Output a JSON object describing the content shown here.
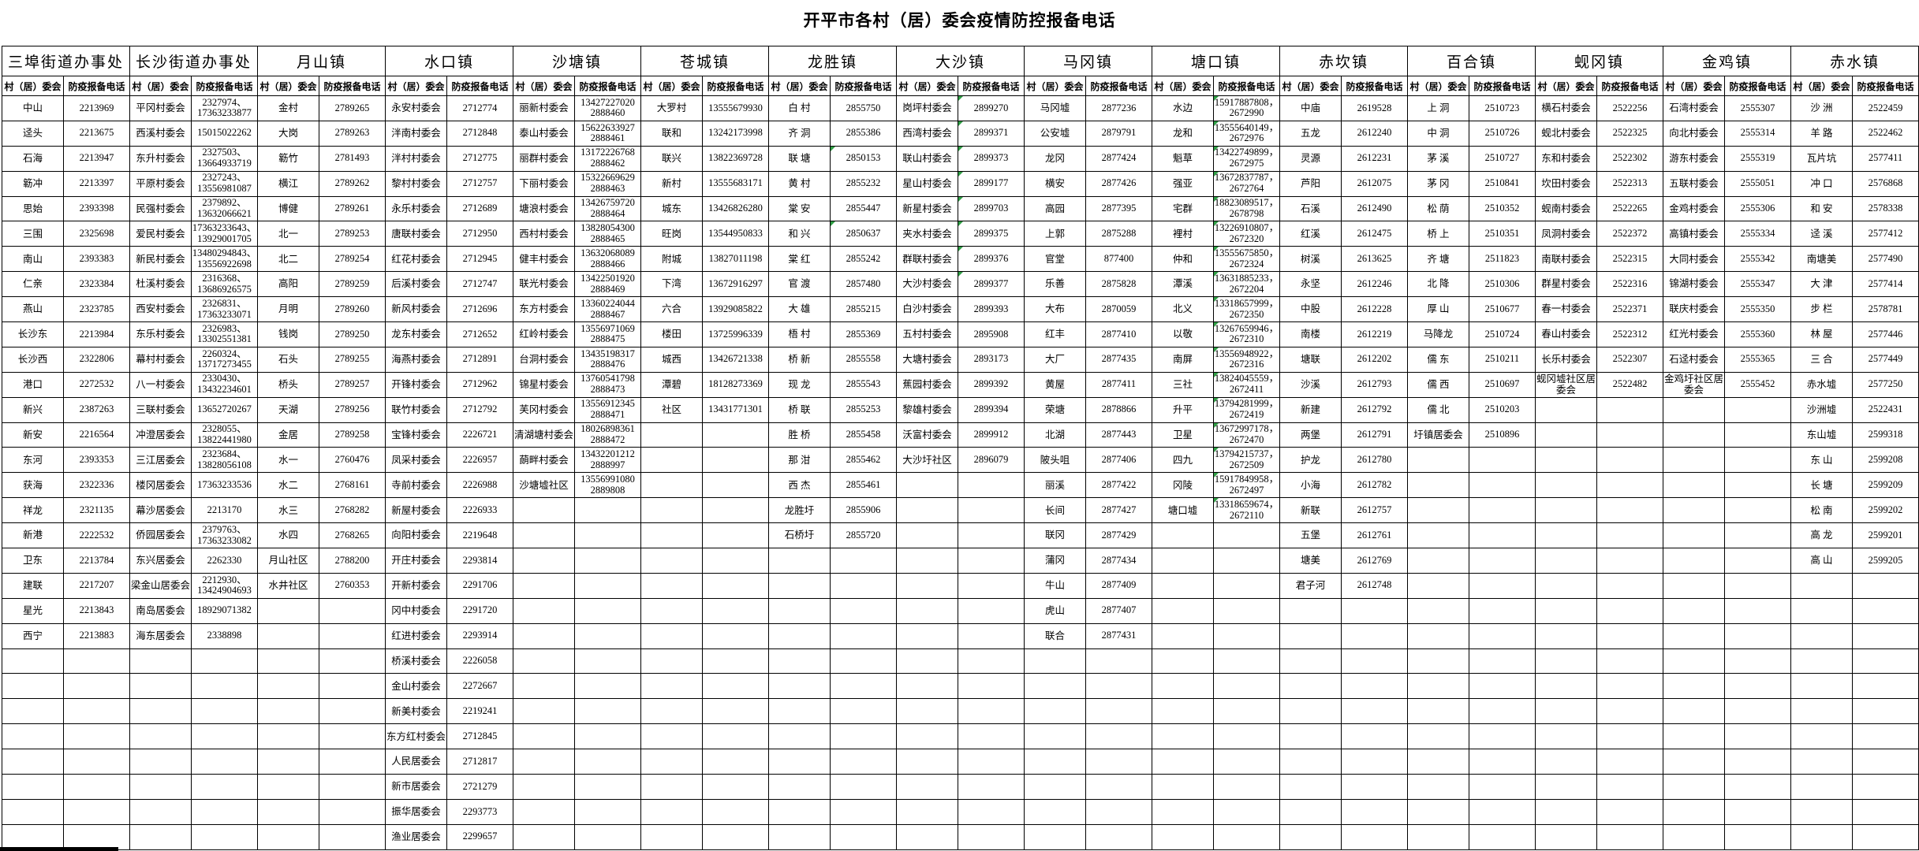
{
  "title": "开平市各村（居）委会疫情防控报备电话",
  "column_headers": {
    "village": "村（居）委会",
    "phone": "防疫报备电话"
  },
  "colors": {
    "grid": "#000000",
    "excel_marker_green": "#2f9e44",
    "background": "#ffffff"
  },
  "towns": [
    {
      "name": "三埠街道办事处",
      "rows": [
        [
          "中山",
          "2213969"
        ],
        [
          "迳头",
          "2213675"
        ],
        [
          "石海",
          "2213947"
        ],
        [
          "簕冲",
          "2213397"
        ],
        [
          "思始",
          "2393398"
        ],
        [
          "三围",
          "2325698"
        ],
        [
          "南山",
          "2393383"
        ],
        [
          "仁亲",
          "2323384"
        ],
        [
          "燕山",
          "2323785"
        ],
        [
          "长沙东",
          "2213984"
        ],
        [
          "长沙西",
          "2322806"
        ],
        [
          "港口",
          "2272532"
        ],
        [
          "新兴",
          "2387263"
        ],
        [
          "新安",
          "2216564"
        ],
        [
          "东河",
          "2393353"
        ],
        [
          "获海",
          "2322336"
        ],
        [
          "祥龙",
          "2321135"
        ],
        [
          "新港",
          "2222532"
        ],
        [
          "卫东",
          "2213784"
        ],
        [
          "建联",
          "2217207"
        ],
        [
          "星光",
          "2213843"
        ],
        [
          "西宁",
          "2213883"
        ]
      ]
    },
    {
      "name": "长沙街道办事处",
      "rows": [
        [
          "平冈村委会",
          "2327974、\n17363233877"
        ],
        [
          "西溪村委会",
          "15015022262"
        ],
        [
          "东升村委会",
          "2327503、\n13664933719"
        ],
        [
          "平原村委会",
          "2327243、\n13556981087"
        ],
        [
          "民强村委会",
          "2379892、\n13632066621"
        ],
        [
          "爱民村委会",
          "17363233643、\n13929001705"
        ],
        [
          "新民村委会",
          "13480294843、\n13556922698"
        ],
        [
          "杜溪村委会",
          "2316368、\n13686926575"
        ],
        [
          "西安村委会",
          "2326831、\n17363233071"
        ],
        [
          "东乐村委会",
          "2326983、\n13302551381"
        ],
        [
          "幕村村委会",
          "2260324、\n13717273455"
        ],
        [
          "八一村委会",
          "2330430、\n13432234601"
        ],
        [
          "三联村委会",
          "13652720267"
        ],
        [
          "冲澄居委会",
          "2328055、\n13822441980"
        ],
        [
          "三江居委会",
          "2323684、\n13828056108"
        ],
        [
          "楼冈居委会",
          "17363233536"
        ],
        [
          "幕沙居委会",
          "2213170"
        ],
        [
          "侨园居委会",
          "2379763、\n17363233082"
        ],
        [
          "东兴居委会",
          "2262330"
        ],
        [
          "梁金山居委会",
          "2212930、\n13424904693"
        ],
        [
          "南岛居委会",
          "18929071382"
        ],
        [
          "海东居委会",
          "2338898"
        ]
      ]
    },
    {
      "name": "月山镇",
      "rows": [
        [
          "金村",
          "2789265"
        ],
        [
          "大岗",
          "2789263"
        ],
        [
          "簕竹",
          "2781493"
        ],
        [
          "横江",
          "2789262"
        ],
        [
          "博健",
          "2789261"
        ],
        [
          "北一",
          "2789253"
        ],
        [
          "北二",
          "2789254"
        ],
        [
          "高阳",
          "2789259"
        ],
        [
          "月明",
          "2789260"
        ],
        [
          "钱岗",
          "2789250"
        ],
        [
          "石头",
          "2789255"
        ],
        [
          "桥头",
          "2789257"
        ],
        [
          "天湖",
          "2789256"
        ],
        [
          "金居",
          "2789258"
        ],
        [
          "水一",
          "2760476"
        ],
        [
          "水二",
          "2768161"
        ],
        [
          "水三",
          "2768282"
        ],
        [
          "水四",
          "2768265"
        ],
        [
          "月山社区",
          "2788200"
        ],
        [
          "水井社区",
          "2760353"
        ]
      ]
    },
    {
      "name": "水口镇",
      "rows": [
        [
          "永安村委会",
          "2712774"
        ],
        [
          "泮南村委会",
          "2712848"
        ],
        [
          "泮村村委会",
          "2712775"
        ],
        [
          "黎村村委会",
          "2712757"
        ],
        [
          "永乐村委会",
          "2712689"
        ],
        [
          "唐联村委会",
          "2712950"
        ],
        [
          "红花村委会",
          "2712945"
        ],
        [
          "后溪村委会",
          "2712747"
        ],
        [
          "新风村委会",
          "2712696"
        ],
        [
          "龙东村委会",
          "2712652"
        ],
        [
          "海燕村委会",
          "2712891"
        ],
        [
          "开锋村委会",
          "2712962"
        ],
        [
          "联竹村委会",
          "2712792"
        ],
        [
          "宝锋村委会",
          "2226721"
        ],
        [
          "凤采村委会",
          "2226957"
        ],
        [
          "寺前村委会",
          "2226988"
        ],
        [
          "新屋村委会",
          "2226933"
        ],
        [
          "向阳村委会",
          "2219648"
        ],
        [
          "开庄村委会",
          "2293814"
        ],
        [
          "开新村委会",
          "2291706"
        ],
        [
          "冈中村委会",
          "2291720"
        ],
        [
          "红进村委会",
          "2293914"
        ],
        [
          "桥溪村委会",
          "2226058"
        ],
        [
          "金山村委会",
          "2272667"
        ],
        [
          "新美村委会",
          "2219241"
        ],
        [
          "东方红村委会",
          "2712845"
        ],
        [
          "人民居委会",
          "2712817"
        ],
        [
          "新市居委会",
          "2721279"
        ],
        [
          "振华居委会",
          "2293773"
        ],
        [
          "渔业居委会",
          "2299657"
        ]
      ]
    },
    {
      "name": "沙塘镇",
      "rows": [
        [
          "丽新村委会",
          "13427227020\n2888460"
        ],
        [
          "泰山村委会",
          "15622633927\n2888461"
        ],
        [
          "丽群村委会",
          "13172226768\n2888462"
        ],
        [
          "下丽村委会",
          "15322669629\n2888463"
        ],
        [
          "塘浪村委会",
          "13426759720\n2888464"
        ],
        [
          "西村村委会",
          "13828054300\n2888465"
        ],
        [
          "健丰村委会",
          "13632068089\n2888466"
        ],
        [
          "联光村委会",
          "13422501920\n2888469"
        ],
        [
          "东方村委会",
          "13360224044\n2888467"
        ],
        [
          "红岭村委会",
          "13556971069\n2888475"
        ],
        [
          "台洞村委会",
          "13435198317\n2888476"
        ],
        [
          "锦星村委会",
          "13760541798\n2888473"
        ],
        [
          "芙冈村委会",
          "13556912345\n2888471"
        ],
        [
          "清湖塘村委会",
          "18026898361\n2888472"
        ],
        [
          "蓢畔村委会",
          "13432201212\n2888997"
        ],
        [
          "沙塘墟社区",
          "13556991080\n2889808"
        ]
      ]
    },
    {
      "name": "苍城镇",
      "rows": [
        [
          "大罗村",
          "13555679930"
        ],
        [
          "联和",
          "13242173998"
        ],
        [
          "联兴",
          "13822369728"
        ],
        [
          "新村",
          "13555683171"
        ],
        [
          "城东",
          "13426826280"
        ],
        [
          "旺岗",
          "13544950833"
        ],
        [
          "附城",
          "13827011198"
        ],
        [
          "下湾",
          "13672916297"
        ],
        [
          "六合",
          "13929085822"
        ],
        [
          "楼田",
          "13725996339"
        ],
        [
          "城西",
          "13426721338"
        ],
        [
          "潭碧",
          "18128273369"
        ],
        [
          "社区",
          "13431771301"
        ]
      ]
    },
    {
      "name": "龙胜镇",
      "marker_rows": [
        2,
        5
      ],
      "rows": [
        [
          "白 村",
          "2855750"
        ],
        [
          "齐 洞",
          "2855386"
        ],
        [
          "联 塘",
          "2850153"
        ],
        [
          "黄 村",
          "2855232"
        ],
        [
          "棠 安",
          "2855447"
        ],
        [
          "和 兴",
          "2850637"
        ],
        [
          "棠 红",
          "2855242"
        ],
        [
          "官 渡",
          "2857480"
        ],
        [
          "大 雄",
          "2855215"
        ],
        [
          "梧 村",
          "2855369"
        ],
        [
          "桥 新",
          "2855558"
        ],
        [
          "现 龙",
          "2855543"
        ],
        [
          "桥 联",
          "2855253"
        ],
        [
          "胜 桥",
          "2855458"
        ],
        [
          "那 泔",
          "2855462"
        ],
        [
          "西 杰",
          "2855461"
        ],
        [
          "龙胜圩",
          "2855906"
        ],
        [
          "石桥圩",
          "2855720"
        ]
      ]
    },
    {
      "name": "大沙镇",
      "marker_rows": [
        0,
        1,
        2,
        3,
        4,
        5,
        6,
        7
      ],
      "rows": [
        [
          "岗坪村委会",
          "2899270"
        ],
        [
          "西湾村委会",
          "2899371"
        ],
        [
          "联山村委会",
          "2899373"
        ],
        [
          "星山村委会",
          "2899177"
        ],
        [
          "新星村委会",
          "2899703"
        ],
        [
          "夹水村委会",
          "2899375"
        ],
        [
          "群联村委会",
          "2899376"
        ],
        [
          "大沙村委会",
          "2899377"
        ],
        [
          "白沙村委会",
          "2899393"
        ],
        [
          "五村村委会",
          "2895908"
        ],
        [
          "大塘村委会",
          "2893173"
        ],
        [
          "蕉园村委会",
          "2899392"
        ],
        [
          "黎雄村委会",
          "2899394"
        ],
        [
          "沃富村委会",
          "2899912"
        ],
        [
          "大沙圩社区",
          "2896079"
        ]
      ]
    },
    {
      "name": "马冈镇",
      "rows": [
        [
          "马冈墟",
          "2877236"
        ],
        [
          "公安墟",
          "2879791"
        ],
        [
          "龙冈",
          "2877424"
        ],
        [
          "横安",
          "2877426"
        ],
        [
          "高园",
          "2877395"
        ],
        [
          "上郭",
          "2875288"
        ],
        [
          "官堂",
          "877400"
        ],
        [
          "乐善",
          "2875828"
        ],
        [
          "大布",
          "2870059"
        ],
        [
          "红丰",
          "2877410"
        ],
        [
          "大厂",
          "2877435"
        ],
        [
          "黄屋",
          "2877411"
        ],
        [
          "荣塘",
          "2878866"
        ],
        [
          "北湖",
          "2877443"
        ],
        [
          "陂头咀",
          "2877406"
        ],
        [
          "丽溪",
          "2877422"
        ],
        [
          "长间",
          "2877427"
        ],
        [
          "联冈",
          "2877429"
        ],
        [
          "蒲冈",
          "2877434"
        ],
        [
          "牛山",
          "2877409"
        ],
        [
          "虎山",
          "2877407"
        ],
        [
          "联合",
          "2877431"
        ]
      ]
    },
    {
      "name": "塘口镇",
      "marker_rows": "all",
      "rows": [
        [
          "水边",
          "15917887808，\n2672990"
        ],
        [
          "龙和",
          "13555640149，\n2672976"
        ],
        [
          "魁草",
          "13422749899，\n2672975"
        ],
        [
          "强亚",
          "13672837787，\n2672764"
        ],
        [
          "宅群",
          "18823089517，\n2678798"
        ],
        [
          "裡村",
          "13226910807，\n2672320"
        ],
        [
          "仲和",
          "13555675850，\n2672324"
        ],
        [
          "潭溪",
          "13631885233，\n2672204"
        ],
        [
          "北义",
          "13318657999，\n2672350"
        ],
        [
          "以敬",
          "13267659946，\n2672310"
        ],
        [
          "南屏",
          "13556948922，\n2672316"
        ],
        [
          "三社",
          "13824045559，\n2672411"
        ],
        [
          "升平",
          "13794281999，\n2672419"
        ],
        [
          "卫星",
          "13672997178，\n2672470"
        ],
        [
          "四九",
          "13794215737，\n2672509"
        ],
        [
          "冈陵",
          "15917849958，\n2672497"
        ],
        [
          "塘口墟",
          "13318659674，\n2672110"
        ]
      ]
    },
    {
      "name": "赤坎镇",
      "rows": [
        [
          "中庙",
          "2619528"
        ],
        [
          "五龙",
          "2612240"
        ],
        [
          "灵源",
          "2612231"
        ],
        [
          "芦阳",
          "2612075"
        ],
        [
          "石溪",
          "2612490"
        ],
        [
          "红溪",
          "2612475"
        ],
        [
          "树溪",
          "2613625"
        ],
        [
          "永坚",
          "2612246"
        ],
        [
          "中股",
          "2612228"
        ],
        [
          "南楼",
          "2612219"
        ],
        [
          "塘联",
          "2612202"
        ],
        [
          "沙溪",
          "2612793"
        ],
        [
          "新建",
          "2612792"
        ],
        [
          "两堡",
          "2612791"
        ],
        [
          "护龙",
          "2612780"
        ],
        [
          "小海",
          "2612782"
        ],
        [
          "新联",
          "2612757"
        ],
        [
          "五堡",
          "2612761"
        ],
        [
          "塘美",
          "2612769"
        ],
        [
          "君子河",
          "2612748"
        ]
      ]
    },
    {
      "name": "百合镇",
      "rows": [
        [
          "上 洞",
          "2510723"
        ],
        [
          "中 洞",
          "2510726"
        ],
        [
          "茅 溪",
          "2510727"
        ],
        [
          "茅 冈",
          "2510841"
        ],
        [
          "松 荫",
          "2510352"
        ],
        [
          "桥 上",
          "2510351"
        ],
        [
          "齐 塘",
          "2511823"
        ],
        [
          "北 降",
          "2510306"
        ],
        [
          "厚 山",
          "2510677"
        ],
        [
          "马降龙",
          "2510724"
        ],
        [
          "儒 东",
          "2510211"
        ],
        [
          "儒 西",
          "2510697"
        ],
        [
          "儒 北",
          "2510203"
        ],
        [
          "圩镇居委会",
          "2510896"
        ]
      ]
    },
    {
      "name": "蚬冈镇",
      "rows": [
        [
          "横石村委会",
          "2522256"
        ],
        [
          "蚬北村委会",
          "2522325"
        ],
        [
          "东和村委会",
          "2522302"
        ],
        [
          "坎田村委会",
          "2522313"
        ],
        [
          "蚬南村委会",
          "2522265"
        ],
        [
          "凤洞村委会",
          "2522372"
        ],
        [
          "南联村委会",
          "2522315"
        ],
        [
          "群星村委会",
          "2522316"
        ],
        [
          "春一村委会",
          "2522371"
        ],
        [
          "春山村委会",
          "2522312"
        ],
        [
          "长乐村委会",
          "2522307"
        ],
        [
          "蚬冈墟社区居委会",
          "2522482"
        ]
      ]
    },
    {
      "name": "金鸡镇",
      "rows": [
        [
          "石湾村委会",
          "2555307"
        ],
        [
          "向北村委会",
          "2555314"
        ],
        [
          "游东村委会",
          "2555319"
        ],
        [
          "五联村委会",
          "2555051"
        ],
        [
          "金鸡村委会",
          "2555306"
        ],
        [
          "高镇村委会",
          "2555334"
        ],
        [
          "大同村委会",
          "2555342"
        ],
        [
          "锦湖村委会",
          "2555347"
        ],
        [
          "联庆村委会",
          "2555350"
        ],
        [
          "红光村委会",
          "2555360"
        ],
        [
          "石迳村委会",
          "2555365"
        ],
        [
          "金鸡圩社区居委会",
          "2555452"
        ]
      ]
    },
    {
      "name": "赤水镇",
      "rows": [
        [
          "沙 洲",
          "2522459"
        ],
        [
          "羊 路",
          "2522462"
        ],
        [
          "瓦片坑",
          "2577411"
        ],
        [
          "冲 口",
          "2576868"
        ],
        [
          "和 安",
          "2578338"
        ],
        [
          "迳 溪",
          "2577412"
        ],
        [
          "南塘美",
          "2577490"
        ],
        [
          "大 津",
          "2577414"
        ],
        [
          "步 栏",
          "2578781"
        ],
        [
          "林 屋",
          "2577446"
        ],
        [
          "三 合",
          "2577449"
        ],
        [
          "赤水墟",
          "2577250"
        ],
        [
          "沙洲墟",
          "2522431"
        ],
        [
          "东山墟",
          "2599318"
        ],
        [
          "东 山",
          "2599208"
        ],
        [
          "长 塘",
          "2599209"
        ],
        [
          "松 南",
          "2599202"
        ],
        [
          "高 龙",
          "2599201"
        ],
        [
          "高 山",
          "2599205"
        ]
      ]
    }
  ],
  "layout_rows": 30
}
